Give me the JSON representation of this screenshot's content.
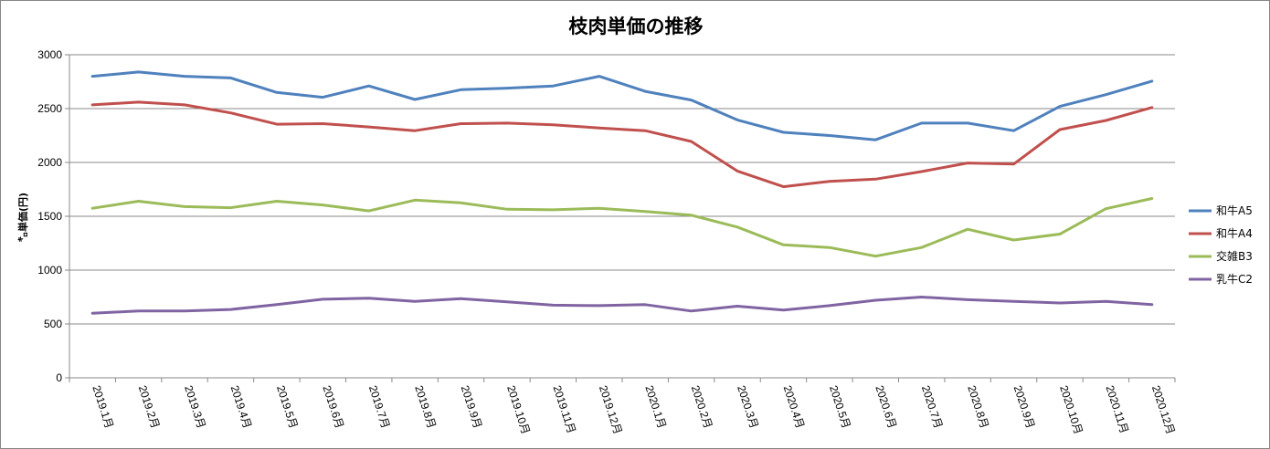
{
  "chart_data": {
    "type": "line",
    "title": "枝肉単価の推移",
    "ylabel": "㌔単価(円)",
    "xlabel": "",
    "ylim": [
      0,
      3000
    ],
    "yticks": [
      0,
      500,
      1000,
      1500,
      2000,
      2500,
      3000
    ],
    "grid": true,
    "legend_position": "right",
    "categories": [
      "2019.1月",
      "2019.2月",
      "2019.3月",
      "2019.4月",
      "2019.5月",
      "2019.6月",
      "2019.7月",
      "2019.8月",
      "2019.9月",
      "2019.10月",
      "2019.11月",
      "2019.12月",
      "2020.1月",
      "2020.2月",
      "2020.3月",
      "2020.4月",
      "2020.5月",
      "2020.6月",
      "2020.7月",
      "2020.8月",
      "2020.9月",
      "2020.10月",
      "2020.11月",
      "2020.12月"
    ],
    "series": [
      {
        "name": "和牛A5",
        "color": "#4F81BD",
        "values": [
          2800,
          2840,
          2800,
          2785,
          2650,
          2605,
          2710,
          2585,
          2675,
          2690,
          2710,
          2800,
          2660,
          2580,
          2395,
          2280,
          2250,
          2210,
          2365,
          2365,
          2295,
          2520,
          2630,
          2755
        ]
      },
      {
        "name": "和牛A4",
        "color": "#C0504D",
        "values": [
          2535,
          2560,
          2535,
          2460,
          2355,
          2360,
          2330,
          2295,
          2360,
          2365,
          2350,
          2320,
          2295,
          2195,
          1920,
          1775,
          1825,
          1845,
          1915,
          1995,
          1985,
          2305,
          2390,
          2510
        ]
      },
      {
        "name": "交雑B3",
        "color": "#9BBB59",
        "values": [
          1575,
          1640,
          1590,
          1580,
          1640,
          1605,
          1550,
          1650,
          1625,
          1565,
          1560,
          1575,
          1545,
          1510,
          1400,
          1235,
          1210,
          1130,
          1210,
          1380,
          1280,
          1335,
          1570,
          1665
        ]
      },
      {
        "name": "乳牛C2",
        "color": "#8064A2",
        "values": [
          600,
          620,
          620,
          635,
          680,
          730,
          740,
          710,
          735,
          705,
          675,
          670,
          680,
          620,
          665,
          630,
          670,
          720,
          750,
          725,
          710,
          695,
          710,
          680
        ]
      }
    ]
  }
}
